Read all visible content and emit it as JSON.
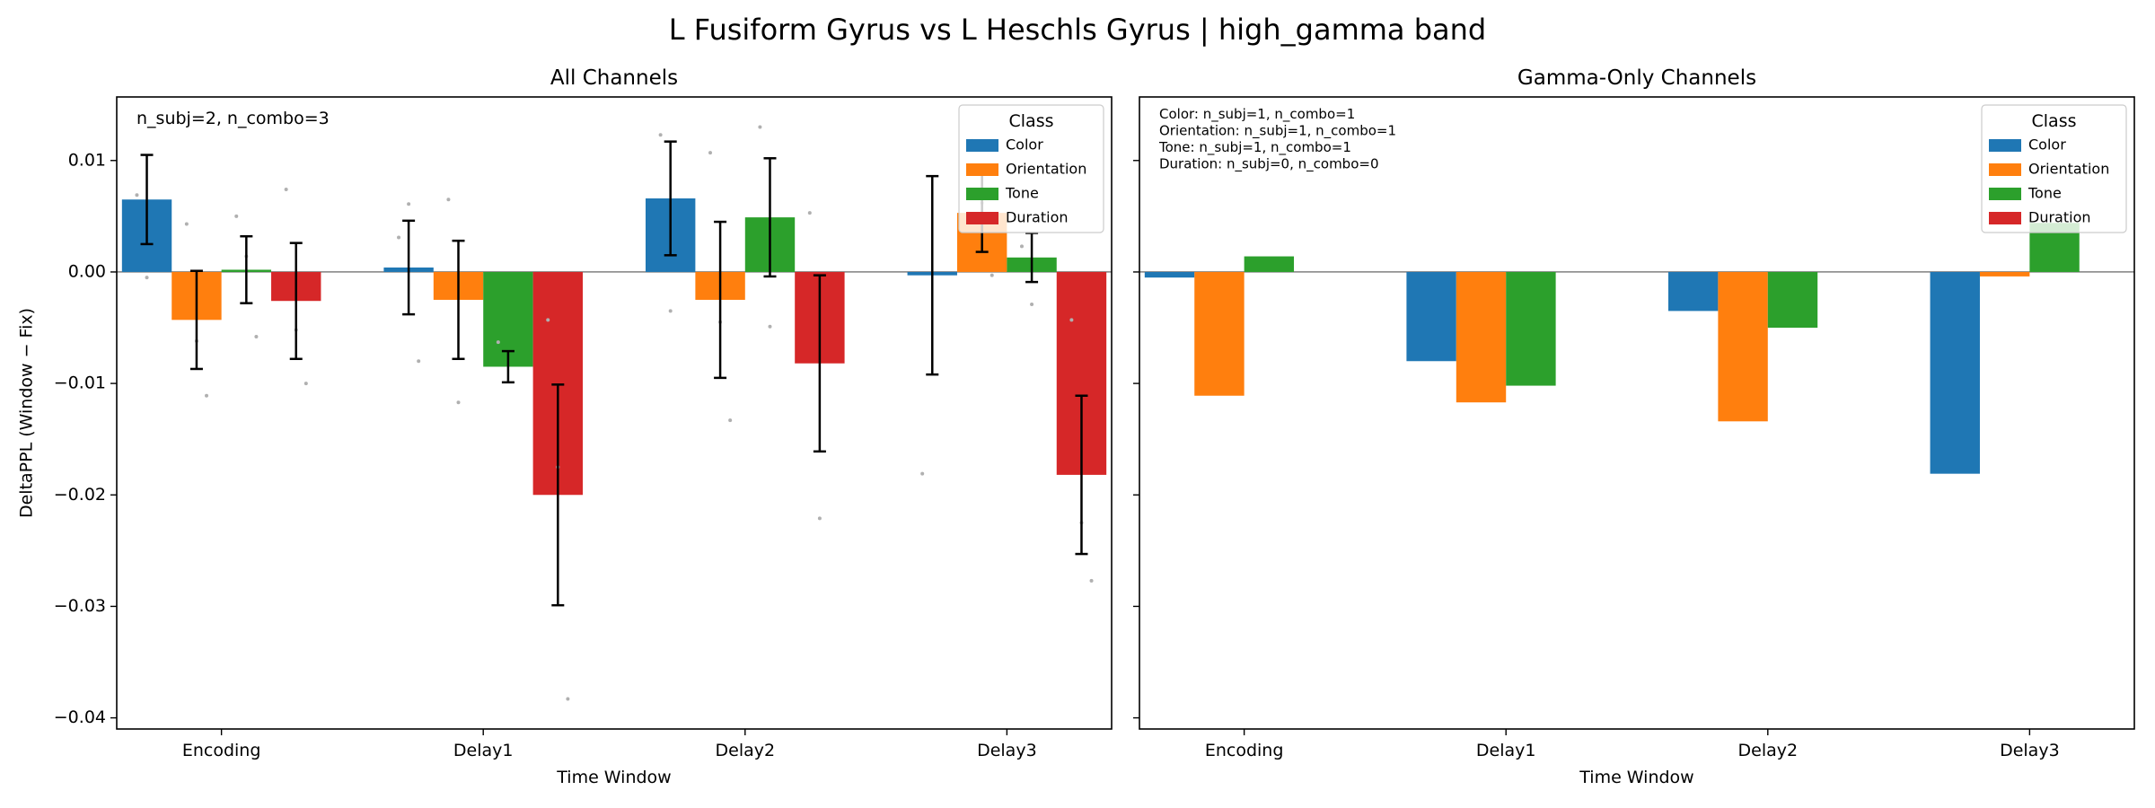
{
  "figure": {
    "title": "L Fusiform Gyrus vs L Heschls Gyrus  |  high_gamma band"
  },
  "legend": {
    "title": "Class",
    "entries": [
      {
        "label": "Color",
        "color": "#1f77b4"
      },
      {
        "label": "Orientation",
        "color": "#ff7f0e"
      },
      {
        "label": "Tone",
        "color": "#2ca02c"
      },
      {
        "label": "Duration",
        "color": "#d62728"
      }
    ]
  },
  "chart_data": [
    {
      "type": "bar",
      "title": "All Channels",
      "xlabel": "Time Window",
      "ylabel": "DeltaPPL (Window − Fix)",
      "ylim": [
        -0.041,
        0.0157
      ],
      "yticks": [
        -0.04,
        -0.03,
        -0.02,
        -0.01,
        0.0,
        0.01
      ],
      "ytick_labels": [
        "−0.04",
        "−0.03",
        "−0.02",
        "−0.01",
        "0.00",
        "0.01"
      ],
      "categories": [
        "Encoding",
        "Delay1",
        "Delay2",
        "Delay3"
      ],
      "annotation": [
        "n_subj=2, n_combo=3"
      ],
      "legend_position": "top-right",
      "series": [
        {
          "name": "Color",
          "values": [
            0.0065,
            0.0004,
            0.0066,
            -0.0003
          ],
          "err": [
            0.004,
            0.0042,
            0.0051,
            0.0089
          ]
        },
        {
          "name": "Orientation",
          "values": [
            -0.0043,
            -0.0025,
            -0.0025,
            0.0053
          ],
          "err": [
            0.0044,
            0.0053,
            0.007,
            0.0035
          ]
        },
        {
          "name": "Tone",
          "values": [
            0.0002,
            -0.0085,
            0.0049,
            0.0013
          ],
          "err": [
            0.003,
            0.0014,
            0.0053,
            0.0022
          ]
        },
        {
          "name": "Duration",
          "values": [
            -0.0026,
            -0.02,
            -0.0082,
            -0.0182
          ],
          "err": [
            0.0052,
            0.0099,
            0.0079,
            0.0071
          ]
        }
      ],
      "scatter_points": [
        {
          "category": 0,
          "series": 0,
          "ys": [
            0.0069,
            -0.0005
          ]
        },
        {
          "category": 0,
          "series": 1,
          "ys": [
            0.0043,
            -0.0062,
            -0.0111
          ]
        },
        {
          "category": 0,
          "series": 2,
          "ys": [
            0.005,
            0.0014,
            -0.0058
          ]
        },
        {
          "category": 0,
          "series": 3,
          "ys": [
            0.0074,
            -0.0052,
            -0.01
          ]
        },
        {
          "category": 1,
          "series": 0,
          "ys": [
            0.0031,
            0.0061,
            -0.008
          ]
        },
        {
          "category": 1,
          "series": 1,
          "ys": [
            0.0065,
            -0.0117
          ]
        },
        {
          "category": 1,
          "series": 2,
          "ys": [
            -0.0063
          ]
        },
        {
          "category": 1,
          "series": 3,
          "ys": [
            -0.0043,
            -0.0175,
            -0.0383
          ]
        },
        {
          "category": 2,
          "series": 0,
          "ys": [
            0.0123,
            -0.0035
          ]
        },
        {
          "category": 2,
          "series": 1,
          "ys": [
            0.0107,
            -0.0045,
            -0.0133
          ]
        },
        {
          "category": 2,
          "series": 2,
          "ys": [
            0.013,
            -0.0049
          ]
        },
        {
          "category": 2,
          "series": 3,
          "ys": [
            0.0053,
            -0.0221
          ]
        },
        {
          "category": 3,
          "series": 0,
          "ys": [
            -0.0181
          ]
        },
        {
          "category": 3,
          "series": 1,
          "ys": [
            0.0118,
            0.0062,
            -0.0003
          ]
        },
        {
          "category": 3,
          "series": 2,
          "ys": [
            0.0023,
            -0.0029
          ]
        },
        {
          "category": 3,
          "series": 3,
          "ys": [
            -0.0043,
            -0.0225,
            -0.0277
          ]
        }
      ]
    },
    {
      "type": "bar",
      "title": "Gamma-Only Channels",
      "xlabel": "Time Window",
      "ylabel": "",
      "ylim": [
        -0.041,
        0.0157
      ],
      "yticks": [
        -0.04,
        -0.03,
        -0.02,
        -0.01,
        0.0,
        0.01
      ],
      "ytick_labels": [],
      "categories": [
        "Encoding",
        "Delay1",
        "Delay2",
        "Delay3"
      ],
      "annotation": [
        "Color: n_subj=1, n_combo=1",
        "Orientation: n_subj=1, n_combo=1",
        "Tone: n_subj=1, n_combo=1",
        "Duration: n_subj=0, n_combo=0"
      ],
      "legend_position": "top-right",
      "series": [
        {
          "name": "Color",
          "values": [
            -0.0005,
            -0.008,
            -0.0035,
            -0.0181
          ]
        },
        {
          "name": "Orientation",
          "values": [
            -0.0111,
            -0.0117,
            -0.0134,
            -0.0004
          ]
        },
        {
          "name": "Tone",
          "values": [
            0.0014,
            -0.0102,
            -0.005,
            0.0044
          ]
        }
      ]
    }
  ]
}
